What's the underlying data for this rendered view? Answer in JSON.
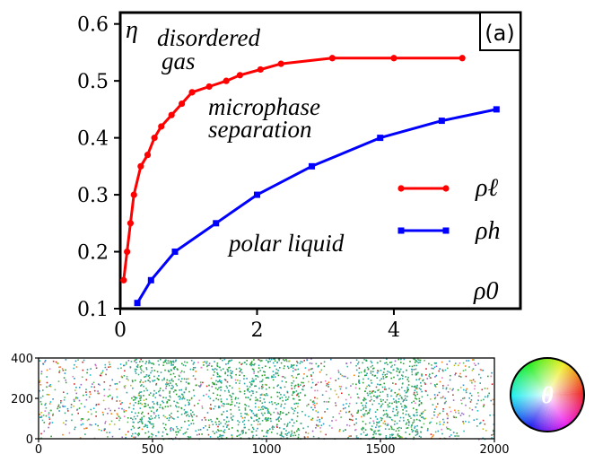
{
  "chart_data": [
    {
      "type": "line",
      "panel_label": "(a)",
      "ylabel": "η",
      "xlabel": "ρ0",
      "xlim": [
        0,
        5.85
      ],
      "ylim": [
        0.1,
        0.62
      ],
      "x_ticks": [
        "0",
        "2",
        "4"
      ],
      "y_ticks": [
        "0.1",
        "0.2",
        "0.3",
        "0.4",
        "0.5",
        "0.6"
      ],
      "grid": false,
      "legend_position": "right",
      "region_labels": [
        {
          "lines": [
            "disordered",
            "gas"
          ]
        },
        {
          "lines": [
            "microphase",
            "separation"
          ]
        },
        {
          "lines": [
            "polar liquid"
          ]
        }
      ],
      "series": [
        {
          "name": "ρℓ",
          "color": "#ff0000",
          "marker": "circle",
          "x": [
            0.05,
            0.1,
            0.15,
            0.2,
            0.3,
            0.4,
            0.5,
            0.6,
            0.75,
            0.9,
            1.05,
            1.3,
            1.55,
            1.75,
            2.05,
            2.35,
            3.1,
            4.0,
            5.0
          ],
          "y": [
            0.15,
            0.2,
            0.25,
            0.3,
            0.35,
            0.37,
            0.4,
            0.42,
            0.44,
            0.46,
            0.48,
            0.49,
            0.5,
            0.51,
            0.52,
            0.53,
            0.54,
            0.54,
            0.54
          ]
        },
        {
          "name": "ρh",
          "color": "#0000ff",
          "marker": "square",
          "x": [
            0.25,
            0.45,
            0.8,
            1.4,
            2.0,
            2.8,
            3.8,
            4.7,
            5.5
          ],
          "y": [
            0.11,
            0.15,
            0.2,
            0.25,
            0.3,
            0.35,
            0.4,
            0.43,
            0.45
          ]
        }
      ]
    },
    {
      "type": "scatter",
      "description": "particle snapshot colored by orientation angle",
      "xlim": [
        0,
        2000
      ],
      "ylim": [
        0,
        400
      ],
      "x_ticks": [
        "0",
        "500",
        "1000",
        "1500",
        "2000"
      ],
      "y_ticks": [
        "0",
        "200",
        "400"
      ],
      "dense_bands": [
        [
          400,
          680
        ],
        [
          760,
          1160
        ],
        [
          1390,
          1680
        ]
      ],
      "colorwheel_label": "θ"
    }
  ]
}
